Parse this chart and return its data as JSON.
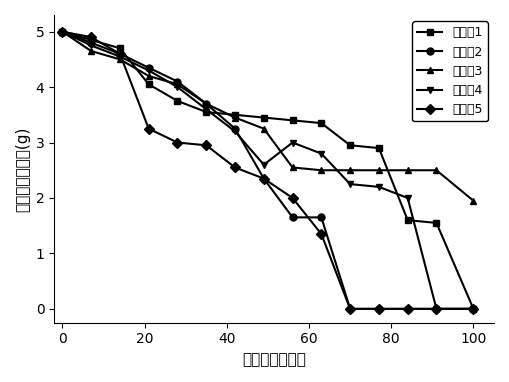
{
  "title": "",
  "xlabel": "控释时间（天）",
  "ylabel": "控释肥剩余重量(g)",
  "xlim": [
    -2,
    105
  ],
  "ylim": [
    -0.25,
    5.3
  ],
  "xticks": [
    0,
    20,
    40,
    60,
    80,
    100
  ],
  "yticks": [
    0,
    1,
    2,
    3,
    4,
    5
  ],
  "series": [
    {
      "label": "实施例1",
      "marker": "s",
      "color": "#000000",
      "x": [
        0,
        7,
        14,
        21,
        28,
        35,
        42,
        49,
        56,
        63,
        70,
        77,
        84,
        91,
        100
      ],
      "y": [
        5.0,
        4.85,
        4.7,
        4.05,
        3.75,
        3.55,
        3.5,
        3.45,
        3.4,
        3.35,
        2.95,
        2.9,
        1.6,
        1.55,
        0.0
      ]
    },
    {
      "label": "实施例2",
      "marker": "o",
      "color": "#000000",
      "x": [
        0,
        7,
        14,
        21,
        28,
        35,
        42,
        49,
        56,
        63,
        70,
        77,
        84,
        91,
        100
      ],
      "y": [
        5.0,
        4.8,
        4.6,
        4.35,
        4.1,
        3.7,
        3.25,
        2.35,
        1.65,
        1.65,
        0.0,
        0.0,
        0.0,
        0.0,
        0.0
      ]
    },
    {
      "label": "实施例3",
      "marker": "^",
      "color": "#000000",
      "x": [
        0,
        7,
        14,
        21,
        28,
        35,
        42,
        49,
        56,
        63,
        70,
        77,
        84,
        91,
        100
      ],
      "y": [
        5.0,
        4.65,
        4.5,
        4.2,
        4.05,
        3.7,
        3.45,
        3.25,
        2.55,
        2.5,
        2.5,
        2.5,
        2.5,
        2.5,
        1.95
      ]
    },
    {
      "label": "实施例4",
      "marker": "v",
      "color": "#000000",
      "x": [
        0,
        7,
        14,
        21,
        28,
        35,
        42,
        49,
        56,
        63,
        70,
        77,
        84,
        91,
        100
      ],
      "y": [
        5.0,
        4.75,
        4.55,
        4.3,
        4.0,
        3.6,
        3.2,
        2.6,
        3.0,
        2.8,
        2.25,
        2.2,
        2.0,
        0.0,
        0.0
      ]
    },
    {
      "label": "实施例5",
      "marker": "D",
      "color": "#000000",
      "x": [
        0,
        7,
        14,
        21,
        28,
        35,
        42,
        49,
        56,
        63,
        70,
        77,
        84,
        91,
        100
      ],
      "y": [
        5.0,
        4.9,
        4.6,
        3.25,
        3.0,
        2.95,
        2.55,
        2.35,
        2.0,
        1.35,
        0.0,
        0.0,
        0.0,
        0.0,
        0.0
      ]
    }
  ],
  "background_color": "#ffffff",
  "legend_loc": "upper right",
  "fontsize_label": 11,
  "fontsize_tick": 10,
  "fontsize_legend": 9,
  "linewidth": 1.5,
  "markersize": 5
}
